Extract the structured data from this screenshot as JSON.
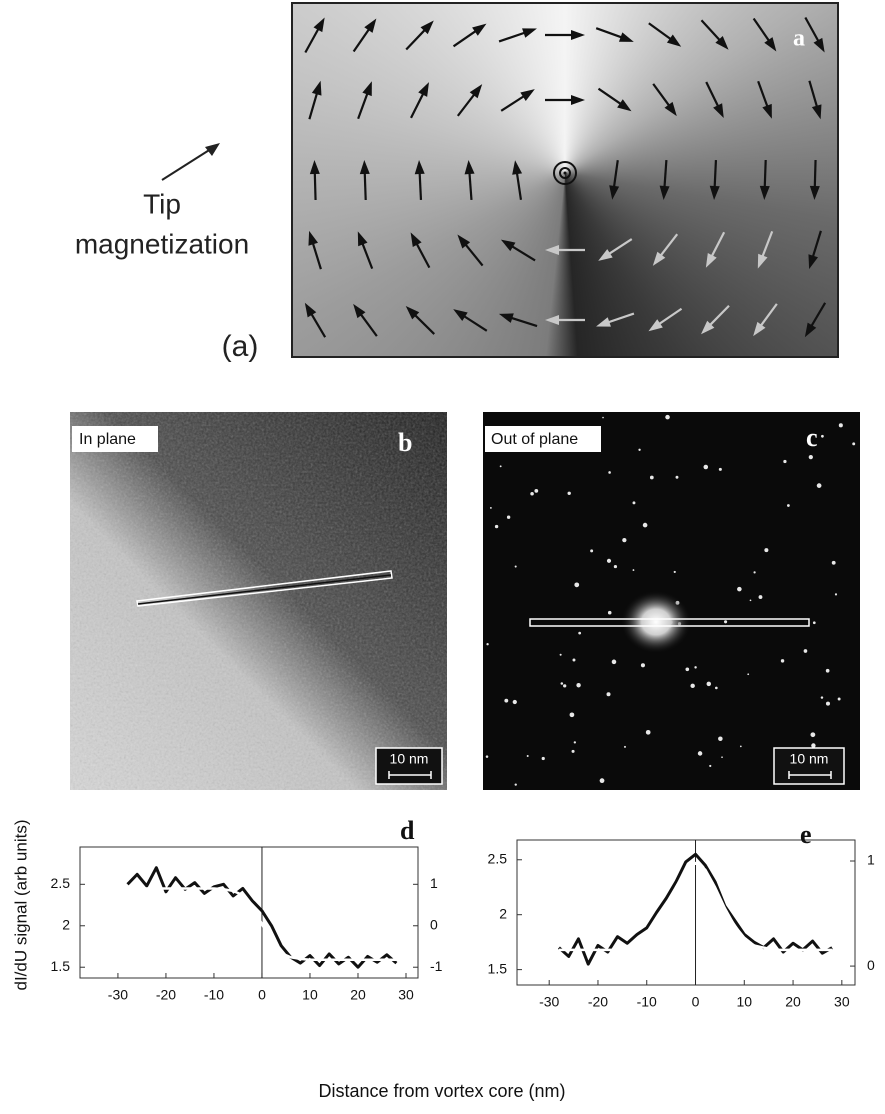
{
  "panel_a": {
    "label": "a",
    "caption": "(a)",
    "tip_label": [
      "Tip",
      "magnetization"
    ]
  },
  "panel_b": {
    "label": "b",
    "tag": "In plane",
    "scale_bar": "10 nm"
  },
  "panel_c": {
    "label": "c",
    "tag": "Out of plane",
    "scale_bar": "10 nm"
  },
  "figure": {
    "xlabel": "Distance from vortex core (nm)",
    "ylabel": "dI/dU signal (arb units)"
  },
  "chart_data": [
    {
      "type": "line",
      "label": "d",
      "x": [
        -28,
        -26,
        -24,
        -22,
        -20,
        -18,
        -16,
        -14,
        -12,
        -10,
        -8,
        -6,
        -4,
        -2,
        0,
        2,
        4,
        6,
        8,
        10,
        12,
        14,
        16,
        18,
        20,
        22,
        24,
        26,
        28
      ],
      "series": [
        {
          "color": "#111111",
          "values": [
            2.5,
            2.62,
            2.48,
            2.7,
            2.41,
            2.58,
            2.44,
            2.52,
            2.39,
            2.47,
            2.5,
            2.36,
            2.45,
            2.3,
            2.18,
            2.0,
            1.76,
            1.62,
            1.55,
            1.64,
            1.52,
            1.66,
            1.54,
            1.62,
            1.5,
            1.63,
            1.56,
            1.65,
            1.55
          ]
        },
        {
          "color": "#ffffff",
          "values": [
            2.45,
            2.45,
            2.45,
            2.45,
            2.45,
            2.45,
            2.45,
            2.45,
            2.45,
            2.45,
            2.44,
            2.42,
            2.37,
            2.24,
            2.02,
            1.8,
            1.67,
            1.62,
            1.6,
            1.59,
            1.59,
            1.59,
            1.59,
            1.59,
            1.59,
            1.59,
            1.59,
            1.59,
            1.59
          ]
        }
      ],
      "xlim": [
        -37.9,
        32.5
      ],
      "xticks": [
        -30,
        -20,
        -10,
        0,
        10,
        20,
        30
      ],
      "ylim": [
        1.37,
        2.95
      ],
      "yticks": [
        1.5,
        2,
        2.5
      ],
      "y2lim": [
        -1.26,
        1.9
      ],
      "y2ticks": [
        -1,
        0,
        1
      ]
    },
    {
      "type": "line",
      "label": "e",
      "x": [
        -28,
        -26,
        -24,
        -22,
        -20,
        -18,
        -16,
        -14,
        -12,
        -10,
        -8,
        -6,
        -4,
        -2,
        0,
        2,
        4,
        6,
        8,
        10,
        12,
        14,
        16,
        18,
        20,
        22,
        24,
        26,
        28
      ],
      "series": [
        {
          "color": "#111111",
          "values": [
            1.7,
            1.62,
            1.78,
            1.55,
            1.72,
            1.66,
            1.8,
            1.74,
            1.82,
            1.88,
            2.02,
            2.15,
            2.3,
            2.48,
            2.55,
            2.45,
            2.3,
            2.08,
            1.95,
            1.82,
            1.75,
            1.7,
            1.78,
            1.66,
            1.74,
            1.68,
            1.76,
            1.65,
            1.7
          ]
        },
        {
          "color": "#ffffff",
          "values": [
            1.68,
            1.68,
            1.68,
            1.68,
            1.68,
            1.68,
            1.68,
            1.7,
            1.72,
            1.79,
            1.9,
            2.06,
            2.25,
            2.41,
            2.47,
            2.41,
            2.25,
            2.06,
            1.9,
            1.79,
            1.72,
            1.7,
            1.68,
            1.68,
            1.68,
            1.68,
            1.68,
            1.68,
            1.68
          ]
        }
      ],
      "xlim": [
        -36.6,
        32.7
      ],
      "xticks": [
        -30,
        -20,
        -10,
        0,
        10,
        20,
        30
      ],
      "ylim": [
        1.36,
        2.68
      ],
      "yticks": [
        1.5,
        2,
        2.5
      ],
      "y2lim": [
        -0.18,
        1.2
      ],
      "y2ticks": [
        0,
        1
      ]
    }
  ]
}
